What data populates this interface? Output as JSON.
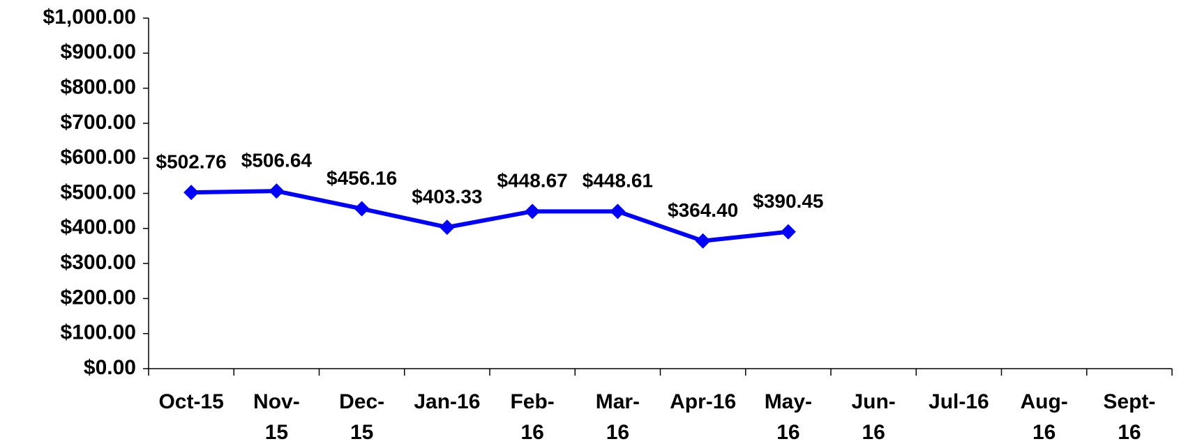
{
  "chart_data": {
    "type": "line",
    "categories": [
      "Oct-15",
      "Nov-15",
      "Dec-15",
      "Jan-16",
      "Feb-16",
      "Mar-16",
      "Apr-16",
      "May-16",
      "Jun-16",
      "Jul-16",
      "Aug-16",
      "Sept-16"
    ],
    "series": [
      {
        "color": "#0000ff",
        "values": [
          502.76,
          506.64,
          456.16,
          403.33,
          448.67,
          448.61,
          364.4,
          390.45,
          null,
          null,
          null,
          null
        ],
        "value_labels": [
          "$502.76",
          "$506.64",
          "$456.16",
          "$403.33",
          "$448.67",
          "$448.61",
          "$364.40",
          "$390.45",
          null,
          null,
          null,
          null
        ]
      }
    ],
    "ylim": [
      0,
      1000
    ],
    "yticks": [
      {
        "value": 0,
        "label": "$0.00"
      },
      {
        "value": 100,
        "label": "$100.00"
      },
      {
        "value": 200,
        "label": "$200.00"
      },
      {
        "value": 300,
        "label": "$300.00"
      },
      {
        "value": 400,
        "label": "$400.00"
      },
      {
        "value": 500,
        "label": "$500.00"
      },
      {
        "value": 600,
        "label": "$600.00"
      },
      {
        "value": 700,
        "label": "$700.00"
      },
      {
        "value": 800,
        "label": "$800.00"
      },
      {
        "value": 900,
        "label": "$900.00"
      },
      {
        "value": 1000,
        "label": "$1,000.00"
      }
    ]
  }
}
